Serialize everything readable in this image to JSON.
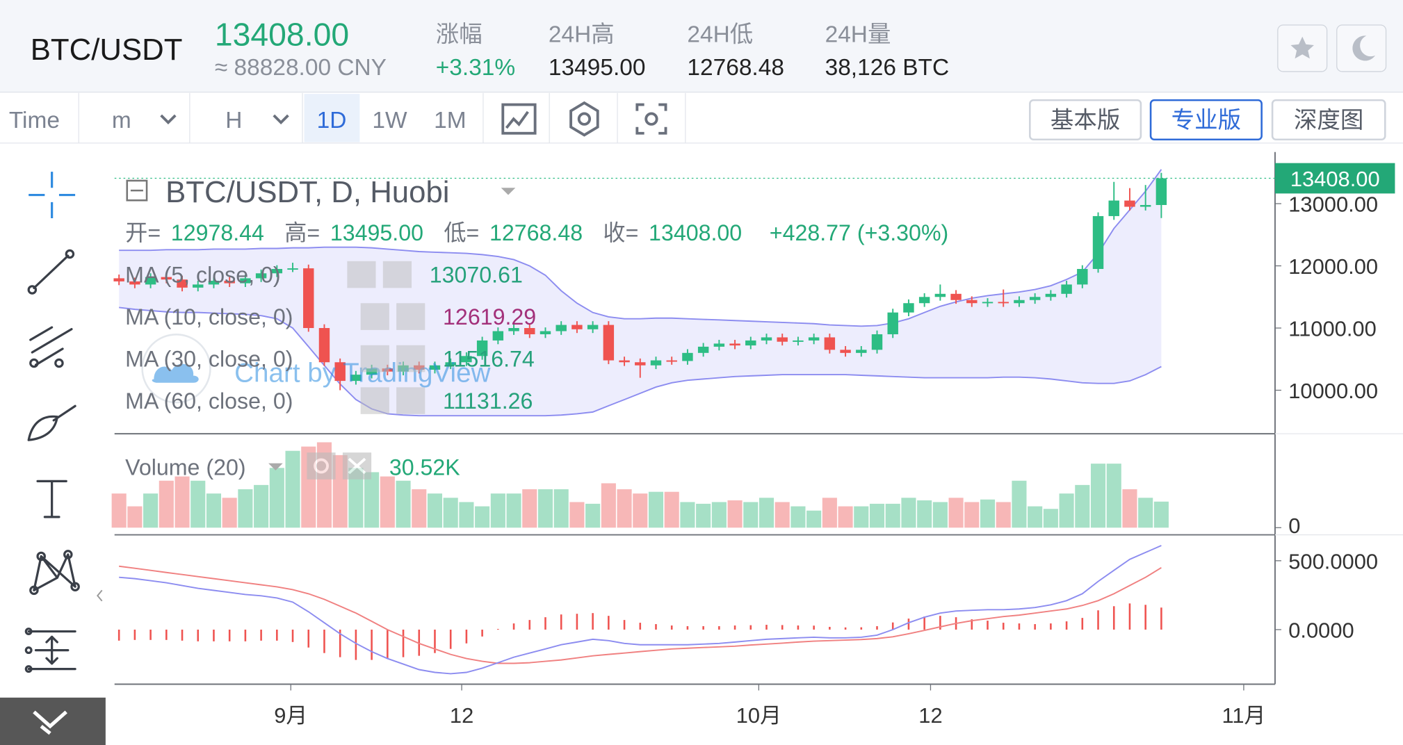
{
  "header": {
    "symbol": "BTC/USDT",
    "price": "13408.00",
    "cny": "≈ 88828.00 CNY",
    "stats": [
      {
        "label": "涨幅",
        "value": "+3.31%"
      },
      {
        "label": "24H高",
        "value": "13495.00"
      },
      {
        "label": "24H低",
        "value": "12768.48"
      },
      {
        "label": "24H量",
        "value": "38,126 BTC"
      }
    ]
  },
  "toolbar": {
    "intervals": [
      "Time",
      "m",
      "H",
      "1D",
      "1W",
      "1M"
    ],
    "versions": [
      "基本版",
      "专业版",
      "深度图"
    ]
  },
  "chart_data": {
    "type": "candlestick",
    "title": "BTC/USDT, D, Huobi",
    "watermark": "Chart by TradingView",
    "ohlc_legend": [
      "开=",
      "12978.44",
      "高=",
      "13495.00",
      "低=",
      "12768.48",
      "收=",
      "13408.00",
      "+428.77 (+3.30%)"
    ],
    "indicators": [
      {
        "name": "MA (5, close, 0)",
        "value": "13070.61",
        "color": "#26a17b"
      },
      {
        "name": "MA (10, close, 0)",
        "value": "12619.29",
        "color": "#a3307a"
      },
      {
        "name": "MA (30, close, 0)",
        "value": "11516.74",
        "color": "#26a17b"
      },
      {
        "name": "MA (60, close, 0)",
        "value": "11131.26",
        "color": "#26a17b"
      }
    ],
    "up_color": "#2dbd84",
    "down_color": "#ef5350",
    "open": [
      11800,
      11750,
      11700,
      11820,
      11780,
      11650,
      11700,
      11760,
      11720,
      11800,
      11880,
      11950,
      11960,
      11000,
      10450,
      10150,
      10250,
      10350,
      10300,
      10400,
      10330,
      10400,
      10450,
      10550,
      10800,
      10950,
      11000,
      10900,
      10950,
      11050,
      10980,
      11050,
      10480,
      10450,
      10400,
      10480,
      10470,
      10600,
      10700,
      10750,
      10720,
      10800,
      10850,
      10780,
      10800,
      10850,
      10650,
      10600,
      10650,
      10900,
      11250,
      11400,
      11500,
      11550,
      11450,
      11400,
      11420,
      11400,
      11450,
      11500,
      11550,
      11700,
      11950,
      12800,
      13050,
      12950,
      12978.44
    ],
    "high": [
      11860,
      11810,
      11880,
      11880,
      11840,
      11760,
      11820,
      11820,
      11860,
      11940,
      12010,
      12050,
      12020,
      11060,
      10510,
      10310,
      10410,
      10410,
      10460,
      10460,
      10460,
      10510,
      10610,
      10860,
      11010,
      11060,
      11060,
      11010,
      11110,
      11110,
      11110,
      11110,
      10540,
      10510,
      10540,
      10540,
      10660,
      10760,
      10810,
      10810,
      10860,
      10910,
      10910,
      10860,
      10910,
      10910,
      10710,
      10710,
      10960,
      11310,
      11460,
      11560,
      11700,
      11610,
      11510,
      11480,
      11620,
      11510,
      11560,
      11610,
      11760,
      12010,
      12860,
      13350,
      13250,
      13300,
      13495
    ],
    "low": [
      11690,
      11640,
      11640,
      11720,
      11590,
      11590,
      11640,
      11660,
      11660,
      11740,
      11820,
      11900,
      10940,
      10390,
      10000,
      10090,
      10190,
      10240,
      10240,
      10270,
      10270,
      10340,
      10390,
      10490,
      10740,
      10890,
      10840,
      10840,
      10890,
      10920,
      10920,
      10420,
      10390,
      10200,
      10340,
      10410,
      10410,
      10540,
      10640,
      10660,
      10660,
      10740,
      10720,
      10720,
      10740,
      10590,
      10540,
      10540,
      10590,
      10840,
      11190,
      11340,
      11440,
      11390,
      11340,
      11340,
      11340,
      11340,
      11390,
      11440,
      11490,
      11640,
      11890,
      12740,
      12890,
      12890,
      12768.48
    ],
    "close": [
      11750,
      11700,
      11820,
      11780,
      11650,
      11700,
      11760,
      11720,
      11800,
      11880,
      11950,
      11960,
      11000,
      10450,
      10150,
      10250,
      10350,
      10300,
      10400,
      10330,
      10400,
      10450,
      10550,
      10800,
      10950,
      11000,
      10900,
      10950,
      11050,
      10980,
      11050,
      10480,
      10450,
      10400,
      10480,
      10470,
      10600,
      10700,
      10750,
      10720,
      10800,
      10850,
      10780,
      10800,
      10850,
      10650,
      10600,
      10650,
      10900,
      11250,
      11400,
      11500,
      11550,
      11450,
      11400,
      11420,
      11400,
      11450,
      11500,
      11550,
      11700,
      11950,
      12800,
      13050,
      12950,
      12978.44,
      13408
    ],
    "band_color": "#8c8cf0",
    "band_upper": [
      12250,
      12250,
      12250,
      12260,
      12260,
      12260,
      12270,
      12270,
      12270,
      12280,
      12280,
      12290,
      12290,
      12300,
      12300,
      12300,
      12290,
      12270,
      12250,
      12230,
      12220,
      12210,
      12200,
      12180,
      12150,
      12100,
      12000,
      11850,
      11600,
      11400,
      11250,
      11180,
      11150,
      11150,
      11160,
      11160,
      11150,
      11140,
      11130,
      11120,
      11110,
      11100,
      11090,
      11080,
      11070,
      11050,
      11040,
      11030,
      11040,
      11080,
      11150,
      11250,
      11350,
      11420,
      11480,
      11520,
      11550,
      11580,
      11620,
      11680,
      11780,
      11900,
      12200,
      12600,
      12900,
      13200,
      13550
    ],
    "band_lower": [
      11330,
      11300,
      11280,
      11260,
      11250,
      11250,
      11240,
      11230,
      11220,
      11200,
      11150,
      11000,
      10700,
      10400,
      10100,
      9850,
      9700,
      9620,
      9600,
      9590,
      9590,
      9590,
      9590,
      9590,
      9590,
      9590,
      9590,
      9590,
      9600,
      9620,
      9650,
      9750,
      9850,
      9950,
      10050,
      10120,
      10160,
      10180,
      10200,
      10220,
      10230,
      10240,
      10250,
      10250,
      10250,
      10250,
      10250,
      10240,
      10230,
      10220,
      10210,
      10200,
      10200,
      10200,
      10200,
      10200,
      10210,
      10210,
      10200,
      10180,
      10150,
      10120,
      10110,
      10110,
      10150,
      10250,
      10380
    ],
    "ylim": [
      9300,
      13830
    ],
    "yticks": [
      {
        "value": 10000,
        "label": "10000.00"
      },
      {
        "value": 11000,
        "label": "11000.00"
      },
      {
        "value": 12000,
        "label": "12000.00"
      },
      {
        "value": 13000,
        "label": "13000.00"
      }
    ],
    "xticks": [
      "9月",
      "12",
      "10月",
      "12",
      "11月"
    ],
    "volume": {
      "name": "Volume (20)",
      "last_label": "30.52K",
      "up_color": "#a6e0c6",
      "down_color": "#f7b7b7",
      "values": [
        40,
        25,
        40,
        55,
        60,
        55,
        40,
        35,
        45,
        50,
        70,
        90,
        95,
        100,
        85,
        70,
        65,
        60,
        55,
        45,
        40,
        35,
        30,
        25,
        40,
        40,
        45,
        45,
        45,
        30,
        28,
        52,
        45,
        40,
        42,
        42,
        30,
        28,
        30,
        32,
        30,
        35,
        30,
        25,
        20,
        35,
        25,
        25,
        28,
        28,
        35,
        32,
        30,
        35,
        30,
        33,
        30,
        55,
        25,
        22,
        40,
        50,
        75,
        75,
        45,
        35,
        30.52
      ],
      "ylim": [
        0,
        110
      ],
      "yticks": [
        0
      ]
    },
    "macd": {
      "dif_color": "#8c8cf0",
      "dea_color": "#f08080",
      "hist_color": "#ef5350",
      "dif": [
        380,
        370,
        355,
        340,
        320,
        300,
        285,
        270,
        255,
        245,
        230,
        200,
        130,
        50,
        -30,
        -100,
        -160,
        -210,
        -250,
        -290,
        -310,
        -320,
        -310,
        -280,
        -240,
        -200,
        -170,
        -140,
        -110,
        -90,
        -70,
        -80,
        -100,
        -110,
        -110,
        -110,
        -110,
        -105,
        -100,
        -90,
        -80,
        -70,
        -65,
        -60,
        -55,
        -60,
        -60,
        -55,
        -40,
        0,
        50,
        90,
        120,
        135,
        140,
        145,
        145,
        150,
        160,
        180,
        210,
        260,
        350,
        430,
        510,
        560,
        610
      ],
      "dea": [
        460,
        445,
        430,
        415,
        400,
        385,
        370,
        355,
        340,
        325,
        310,
        290,
        260,
        220,
        170,
        120,
        60,
        0,
        -50,
        -100,
        -140,
        -180,
        -210,
        -230,
        -245,
        -245,
        -240,
        -230,
        -220,
        -205,
        -190,
        -180,
        -170,
        -160,
        -150,
        -140,
        -135,
        -130,
        -125,
        -120,
        -112,
        -105,
        -98,
        -90,
        -84,
        -80,
        -76,
        -72,
        -65,
        -52,
        -30,
        -5,
        20,
        45,
        65,
        80,
        95,
        105,
        120,
        135,
        150,
        175,
        210,
        260,
        320,
        380,
        450
      ],
      "hist": [
        -80,
        -75,
        -75,
        -75,
        -80,
        -85,
        -85,
        -85,
        -85,
        -80,
        -80,
        -90,
        -130,
        -170,
        -200,
        -220,
        -220,
        -210,
        -200,
        -190,
        -170,
        -140,
        -100,
        -50,
        5,
        45,
        70,
        90,
        110,
        115,
        120,
        100,
        70,
        50,
        40,
        30,
        25,
        25,
        25,
        30,
        32,
        35,
        33,
        30,
        29,
        20,
        16,
        17,
        25,
        52,
        80,
        95,
        100,
        90,
        75,
        65,
        50,
        45,
        40,
        45,
        60,
        85,
        140,
        170,
        190,
        180,
        160
      ],
      "ylim": [
        -396,
        688
      ],
      "yticks": [
        {
          "value": 500,
          "label": "500.0000"
        },
        {
          "value": 0,
          "label": "0.0000"
        }
      ]
    }
  }
}
